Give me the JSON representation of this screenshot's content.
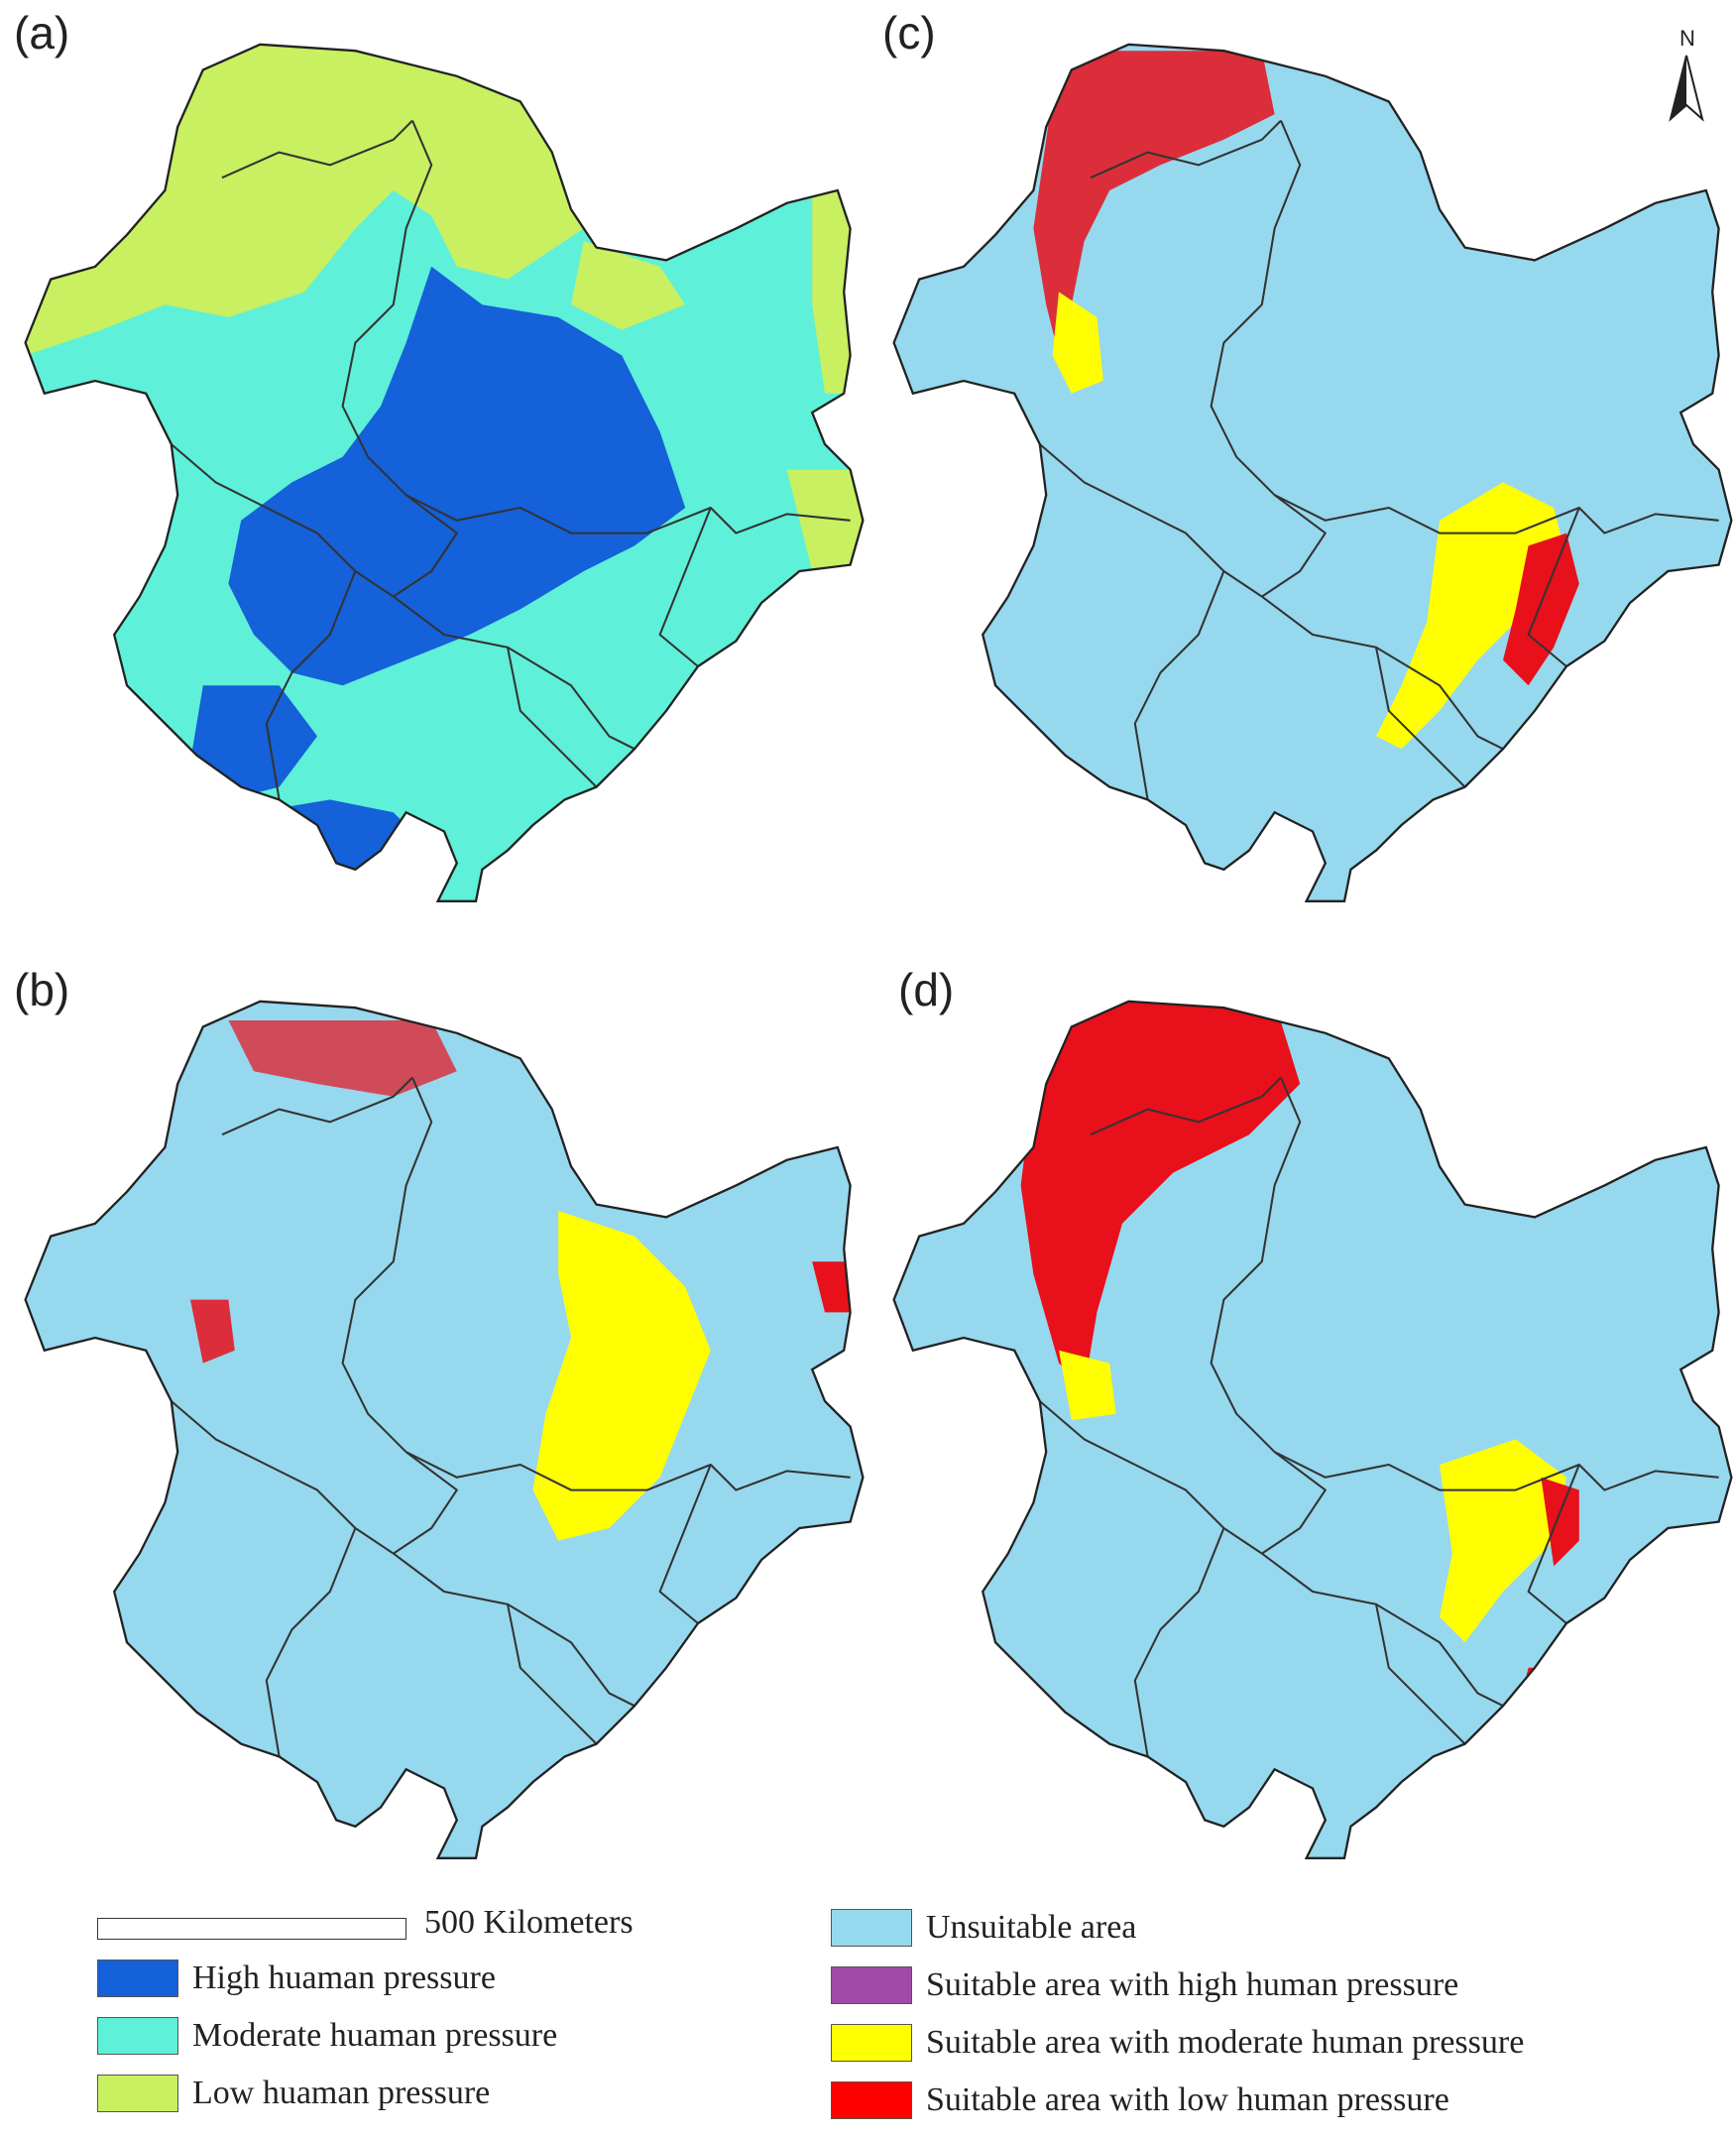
{
  "panels": [
    {
      "key": "a",
      "label": "(a)"
    },
    {
      "key": "b",
      "label": "(b)"
    },
    {
      "key": "c",
      "label": "(c)"
    },
    {
      "key": "d",
      "label": "(d)"
    }
  ],
  "north_arrow": {
    "label": "N"
  },
  "scale": {
    "label": "500 Kilometers"
  },
  "legend_pressure": [
    {
      "label": "High huaman pressure",
      "color": "#1461d9"
    },
    {
      "label": "Moderate huaman pressure",
      "color": "#5ef0d8"
    },
    {
      "label": "Low huaman pressure",
      "color": "#c8f060"
    }
  ],
  "legend_suitability": [
    {
      "label": "Unsuitable area",
      "color": "#96d8ee"
    },
    {
      "label": "Suitable area with high human pressure",
      "color": "#a04aa8"
    },
    {
      "label": "Suitable area with moderate human pressure",
      "color": "#ffff00"
    },
    {
      "label": "Suitable area with low human pressure",
      "color": "#ff0000"
    }
  ],
  "colors": {
    "unsuitable": "#96d8ee",
    "high": "#1461d9",
    "moderate": "#5ef0d8",
    "low": "#c8f060",
    "suit_low": "#e8101a",
    "suit_mod": "#ffff00",
    "border": "#222222"
  }
}
